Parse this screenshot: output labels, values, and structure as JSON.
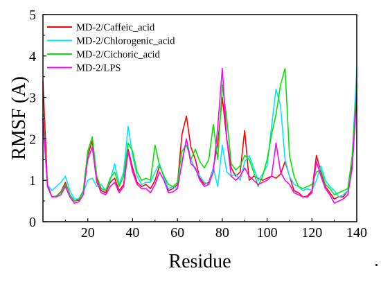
{
  "chart_data": {
    "type": "line",
    "xlabel": "Residue",
    "ylabel": "RMSF (A)",
    "xlim": [
      0,
      140
    ],
    "ylim": [
      0,
      5
    ],
    "xticks": [
      20,
      40,
      60,
      80,
      100,
      120,
      140
    ],
    "yticks": [
      0,
      1,
      2,
      3,
      4,
      5
    ],
    "grid": false,
    "legend_position": "top-left",
    "x": [
      0,
      2,
      4,
      6,
      8,
      10,
      12,
      14,
      16,
      18,
      20,
      22,
      24,
      26,
      28,
      30,
      32,
      34,
      36,
      38,
      40,
      42,
      44,
      46,
      48,
      50,
      52,
      54,
      56,
      58,
      60,
      62,
      64,
      66,
      68,
      70,
      72,
      74,
      76,
      78,
      80,
      82,
      84,
      86,
      88,
      90,
      92,
      94,
      96,
      98,
      100,
      102,
      104,
      106,
      108,
      110,
      112,
      114,
      116,
      118,
      120,
      122,
      124,
      126,
      128,
      130,
      132,
      134,
      136,
      138,
      140
    ],
    "series": [
      {
        "name": "MD-2/Caffeic_acid",
        "color": "#ff0000",
        "values": [
          3.4,
          0.9,
          0.6,
          0.62,
          0.72,
          0.95,
          0.65,
          0.5,
          0.52,
          0.72,
          1.6,
          1.95,
          1.05,
          0.75,
          0.7,
          0.95,
          1.05,
          0.75,
          0.9,
          1.75,
          1.3,
          0.95,
          0.85,
          0.9,
          0.8,
          1.0,
          1.35,
          1.1,
          0.75,
          0.8,
          0.9,
          2.1,
          2.55,
          1.8,
          1.5,
          1.05,
          0.9,
          0.95,
          1.3,
          1.9,
          3.0,
          2.0,
          1.3,
          1.1,
          1.2,
          2.2,
          1.0,
          1.1,
          1.05,
          1.0,
          1.05,
          1.1,
          1.05,
          1.15,
          1.45,
          1.1,
          0.75,
          0.7,
          0.6,
          0.62,
          0.75,
          1.6,
          1.2,
          0.85,
          0.7,
          0.55,
          0.6,
          0.6,
          0.75,
          1.4,
          3.0
        ]
      },
      {
        "name": "MD-2/Chlorogenic_acid",
        "color": "#00e5ff",
        "values": [
          2.4,
          0.9,
          0.75,
          0.85,
          0.95,
          1.1,
          0.75,
          0.55,
          0.55,
          0.7,
          1.0,
          1.05,
          0.85,
          0.9,
          0.75,
          1.0,
          1.4,
          0.9,
          1.2,
          2.3,
          1.6,
          1.1,
          0.9,
          0.95,
          0.95,
          1.2,
          1.4,
          1.05,
          0.8,
          0.85,
          0.8,
          1.45,
          2.0,
          1.5,
          1.25,
          1.1,
          0.95,
          0.9,
          1.3,
          0.85,
          1.85,
          1.2,
          1.1,
          1.15,
          1.0,
          1.45,
          1.6,
          1.3,
          1.0,
          1.15,
          1.35,
          2.3,
          3.2,
          2.8,
          1.5,
          1.1,
          0.9,
          0.85,
          0.75,
          0.8,
          0.75,
          1.0,
          1.35,
          1.0,
          0.85,
          0.75,
          0.6,
          0.65,
          0.75,
          1.6,
          3.7
        ]
      },
      {
        "name": "MD-2/Cichoric_acid",
        "color": "#00e600",
        "values": [
          2.6,
          0.85,
          0.6,
          0.62,
          0.7,
          0.9,
          0.65,
          0.5,
          0.55,
          0.75,
          1.7,
          2.05,
          1.1,
          0.8,
          0.75,
          1.05,
          1.2,
          0.85,
          1.1,
          1.9,
          1.7,
          1.2,
          1.0,
          1.05,
          1.0,
          1.85,
          1.35,
          1.1,
          0.9,
          0.85,
          0.95,
          1.7,
          1.85,
          1.5,
          1.75,
          1.45,
          1.3,
          1.5,
          2.35,
          1.5,
          3.3,
          2.5,
          1.4,
          1.25,
          1.35,
          1.6,
          1.5,
          1.2,
          0.85,
          1.1,
          1.5,
          2.1,
          2.6,
          3.3,
          3.7,
          1.6,
          1.1,
          0.85,
          0.8,
          0.85,
          0.9,
          1.2,
          1.25,
          0.9,
          0.8,
          0.65,
          0.7,
          0.75,
          0.8,
          1.6,
          3.3
        ]
      },
      {
        "name": "MD-2/LPS",
        "color": "#ff00ff",
        "values": [
          2.5,
          0.85,
          0.6,
          0.6,
          0.65,
          0.85,
          0.6,
          0.45,
          0.48,
          0.65,
          1.5,
          1.8,
          0.95,
          0.7,
          0.65,
          0.85,
          0.95,
          0.7,
          0.85,
          1.7,
          1.2,
          0.9,
          0.8,
          0.8,
          0.7,
          0.9,
          1.2,
          1.0,
          0.7,
          0.72,
          0.8,
          1.4,
          2.0,
          1.4,
          1.3,
          1.0,
          0.85,
          0.9,
          1.2,
          2.3,
          3.7,
          2.0,
          1.1,
          1.0,
          1.1,
          1.3,
          1.1,
          1.0,
          0.9,
          0.95,
          1.0,
          1.1,
          1.9,
          1.2,
          1.0,
          0.9,
          0.7,
          0.65,
          0.6,
          0.6,
          0.7,
          1.45,
          1.1,
          0.8,
          0.65,
          0.45,
          0.5,
          0.55,
          0.65,
          1.3,
          3.1
        ]
      }
    ]
  },
  "footer": {
    "mark": "."
  }
}
